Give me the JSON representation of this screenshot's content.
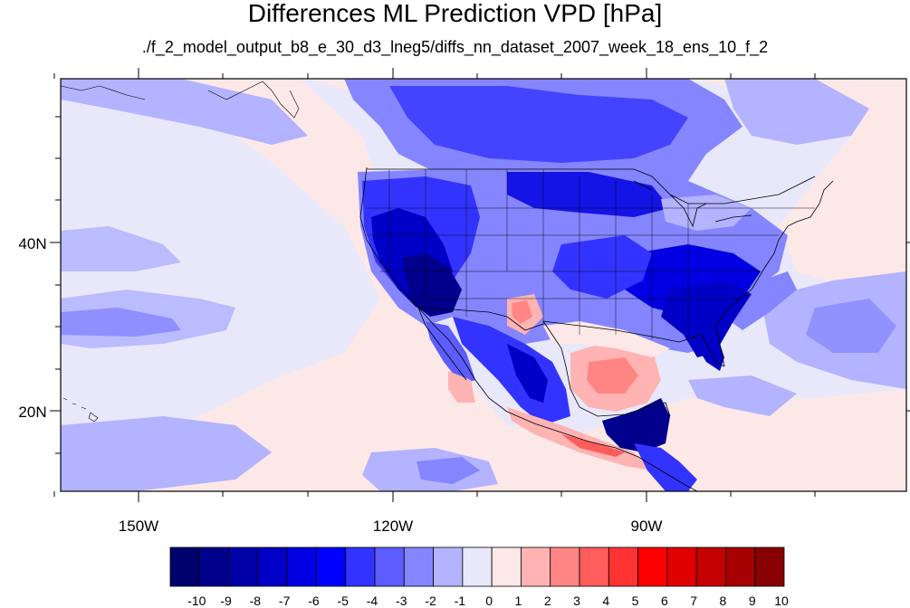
{
  "title": "Differences ML Prediction VPD [hPa]",
  "subtitle": "./f_2_model_output_b8_e_30_d3_lneg5/diffs_nn_dataset_2007_week_18_ens_10_f_2",
  "map": {
    "lon_range": [
      -160,
      -62
    ],
    "lat_range": [
      11,
      60
    ],
    "lon_labels": [
      "150W",
      "120W",
      "90W"
    ],
    "lat_labels": [
      "40N",
      "20N"
    ],
    "background_color": "#e8e8fa"
  },
  "colorbar": {
    "labels": [
      "-10",
      "-9",
      "-8",
      "-7",
      "-6",
      "-5",
      "-4",
      "-3",
      "-2",
      "-1",
      "0",
      "1",
      "2",
      "3",
      "4",
      "5",
      "6",
      "7",
      "8",
      "9",
      "10"
    ],
    "colors": [
      "#00006e",
      "#00008c",
      "#0000a8",
      "#0000c6",
      "#0000e2",
      "#0000ff",
      "#3333ff",
      "#5c5cff",
      "#8585ff",
      "#b3b3ff",
      "#e8e8fa",
      "#fde8e8",
      "#ffb3b3",
      "#ff8585",
      "#ff5c5c",
      "#ff3333",
      "#ff0000",
      "#e00000",
      "#c40000",
      "#a60000",
      "#880000"
    ]
  }
}
